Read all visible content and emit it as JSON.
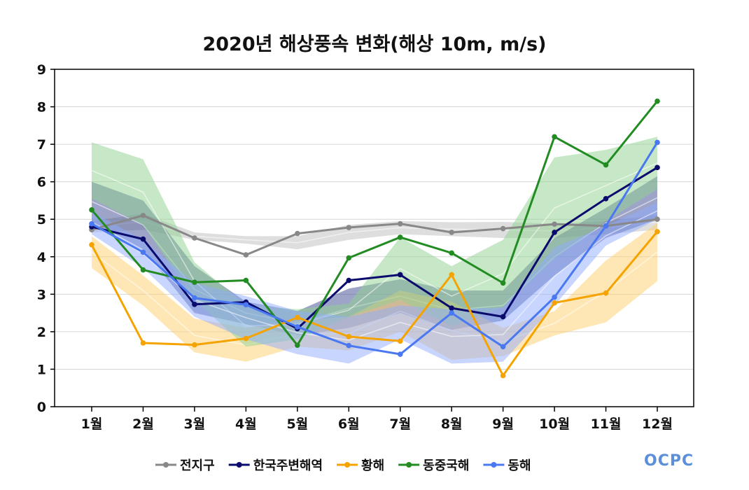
{
  "chart_data": {
    "type": "line",
    "title": "2020년 해상풍속 변화(해상 10m, m/s)",
    "xlabel": "",
    "ylabel": "",
    "categories": [
      "1월",
      "2월",
      "3월",
      "4월",
      "5월",
      "6월",
      "7월",
      "8월",
      "9월",
      "10월",
      "11월",
      "12월"
    ],
    "ylim": [
      0,
      9
    ],
    "yticks": [
      "0",
      "1",
      "2",
      "3",
      "4",
      "5",
      "6",
      "7",
      "8",
      "9"
    ],
    "grid": true,
    "legend_position": "bottom",
    "series": [
      {
        "name": "전지구",
        "color": "#888888",
        "values": [
          4.72,
          5.1,
          4.5,
          4.05,
          4.62,
          4.78,
          4.88,
          4.65,
          4.75,
          4.87,
          4.82,
          5.0
        ],
        "band": {
          "color": "#bdbdbd",
          "upper": [
            4.95,
            5.15,
            4.65,
            4.55,
            4.55,
            4.85,
            4.95,
            4.92,
            4.93,
            4.88,
            4.95,
            5.12
          ],
          "lower": [
            4.65,
            4.72,
            4.45,
            4.35,
            4.2,
            4.45,
            4.6,
            4.55,
            4.5,
            4.5,
            4.6,
            4.72
          ]
        }
      },
      {
        "name": "한국주변해역",
        "color": "#0b0b6e",
        "values": [
          4.8,
          4.47,
          2.73,
          2.79,
          2.08,
          3.37,
          3.52,
          2.63,
          2.4,
          4.65,
          5.55,
          6.38
        ],
        "band": {
          "color": "#3b4a8f",
          "upper": [
            6.0,
            5.5,
            3.75,
            2.8,
            2.55,
            3.15,
            3.4,
            3.1,
            3.1,
            4.5,
            5.3,
            6.15
          ],
          "lower": [
            4.95,
            4.2,
            2.5,
            2.2,
            1.9,
            2.1,
            2.5,
            2.05,
            2.3,
            3.5,
            4.5,
            5.0
          ]
        }
      },
      {
        "name": "황해",
        "color": "#f5a300",
        "values": [
          4.32,
          1.7,
          1.65,
          1.82,
          2.38,
          1.87,
          1.75,
          3.52,
          0.83,
          2.77,
          3.03,
          4.67
        ],
        "band": {
          "color": "#ffcf6b",
          "upper": [
            4.55,
            3.5,
            2.35,
            2.1,
            2.3,
            2.4,
            3.1,
            2.8,
            2.1,
            2.55,
            3.9,
            4.9
          ],
          "lower": [
            3.7,
            2.7,
            1.45,
            1.2,
            1.6,
            1.5,
            2.0,
            1.25,
            1.35,
            1.9,
            2.25,
            3.35
          ]
        }
      },
      {
        "name": "동중국해",
        "color": "#228b22",
        "values": [
          5.25,
          3.65,
          3.32,
          3.37,
          1.64,
          3.97,
          4.52,
          4.1,
          3.3,
          7.2,
          6.45,
          8.15
        ],
        "band": {
          "color": "#8fd18f",
          "upper": [
            7.05,
            6.6,
            3.85,
            2.7,
            2.6,
            2.75,
            4.52,
            3.75,
            4.45,
            6.65,
            6.85,
            7.2
          ],
          "lower": [
            5.55,
            4.85,
            2.85,
            1.6,
            1.8,
            2.4,
            2.85,
            2.15,
            2.65,
            3.95,
            4.95,
            5.8
          ]
        }
      },
      {
        "name": "동해",
        "color": "#4a78f0",
        "values": [
          4.88,
          4.12,
          2.9,
          2.72,
          2.13,
          1.63,
          1.4,
          2.5,
          1.6,
          2.92,
          4.82,
          7.05
        ],
        "band": {
          "color": "#90acff",
          "upper": [
            5.2,
            4.45,
            3.3,
            2.95,
            2.55,
            2.4,
            2.7,
            2.6,
            2.65,
            4.25,
            4.82,
            5.45
          ],
          "lower": [
            4.6,
            3.7,
            2.4,
            1.8,
            1.4,
            1.15,
            1.8,
            1.15,
            1.2,
            2.7,
            4.3,
            5.0
          ]
        }
      }
    ]
  },
  "logo": {
    "text": "OCPC"
  }
}
